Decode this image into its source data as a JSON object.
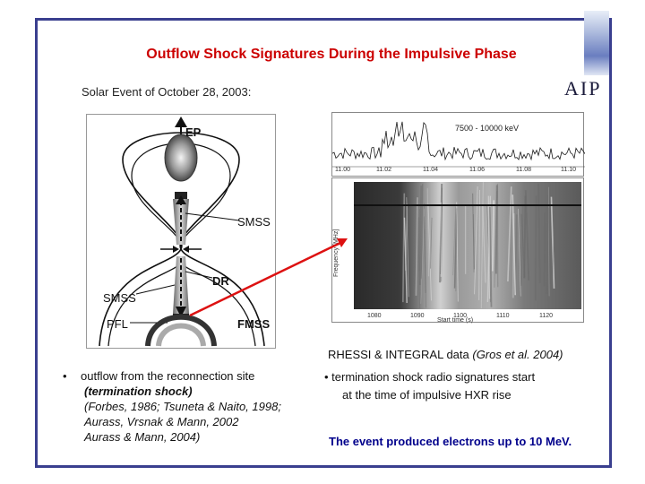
{
  "slide": {
    "title": "Outflow Shock Signatures During the Impulsive Phase",
    "subtitle": "Solar Event of October 28, 2003:",
    "logo": "AIP"
  },
  "diagram": {
    "labels": {
      "ep": "EP",
      "smss_top": "SMSS",
      "dr": "DR",
      "smss_bottom": "SMSS",
      "pfl": "PFL",
      "fmss": "FMSS"
    }
  },
  "hxr_panel": {
    "energy_label": "7500 - 10000 keV",
    "ticks": [
      "11.00",
      "11.02",
      "11.04",
      "11.06",
      "11.08",
      "11.10"
    ]
  },
  "spectrogram": {
    "y_label": "Frequency [MHz]",
    "x_ticks": [
      "1080",
      "1090",
      "1100",
      "1110",
      "1120"
    ],
    "x_label": "Start time (s)"
  },
  "caption": {
    "main": "RHESSI & INTEGRAL data ",
    "ref": "(Gros et al. 2004)"
  },
  "left_bullet": {
    "line1": "outflow from the reconnection site",
    "line2": "(termination shock)",
    "line3": "(Forbes, 1986; Tsuneta & Naito, 1998;",
    "line4": "Aurass, Vrsnak & Mann, 2002",
    "line5": "Aurass & Mann, 2004)"
  },
  "right_bullet": {
    "line1": "termination shock radio signatures start",
    "line2": "at the time of impulsive HXR rise"
  },
  "conclusion": "The event produced electrons up to 10 MeV.",
  "colors": {
    "title": "#cc0000",
    "frame": "#3a3f8f",
    "arrow": "#dd1111",
    "conclusion": "#00008b"
  }
}
